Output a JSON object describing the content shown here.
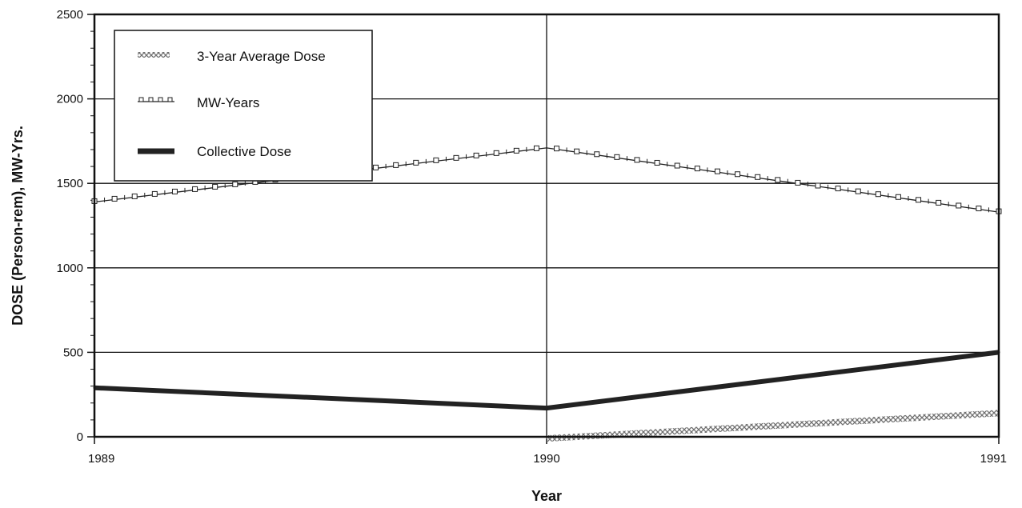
{
  "chart_data": {
    "type": "line",
    "title": "",
    "xlabel": "Year",
    "ylabel": "DOSE (Person-rem), MW-Yrs.",
    "x": [
      1989,
      1990,
      1991
    ],
    "x_tick_labels": [
      "1989",
      "1990",
      "1991"
    ],
    "y_tick_labels": [
      "0",
      "500",
      "1000",
      "1500",
      "2000",
      "2500"
    ],
    "y_ticks": [
      0,
      500,
      1000,
      1500,
      2000,
      2500
    ],
    "ylim": [
      0,
      2500
    ],
    "xlim": [
      1989,
      1991
    ],
    "grid": true,
    "legend_position": "top-left",
    "series": [
      {
        "name": "3-Year Average Dose",
        "x": [
          1990,
          1991
        ],
        "values": [
          -10,
          140
        ],
        "style": "crosshatch",
        "color": "#7a7a7a"
      },
      {
        "name": "MW-Years",
        "x": [
          1989,
          1990,
          1991
        ],
        "values": [
          1390,
          1710,
          1330
        ],
        "style": "square-markers",
        "color": "#222222"
      },
      {
        "name": "Collective Dose",
        "x": [
          1989,
          1990,
          1991
        ],
        "values": [
          290,
          170,
          500
        ],
        "style": "thick",
        "color": "#222222"
      }
    ]
  }
}
